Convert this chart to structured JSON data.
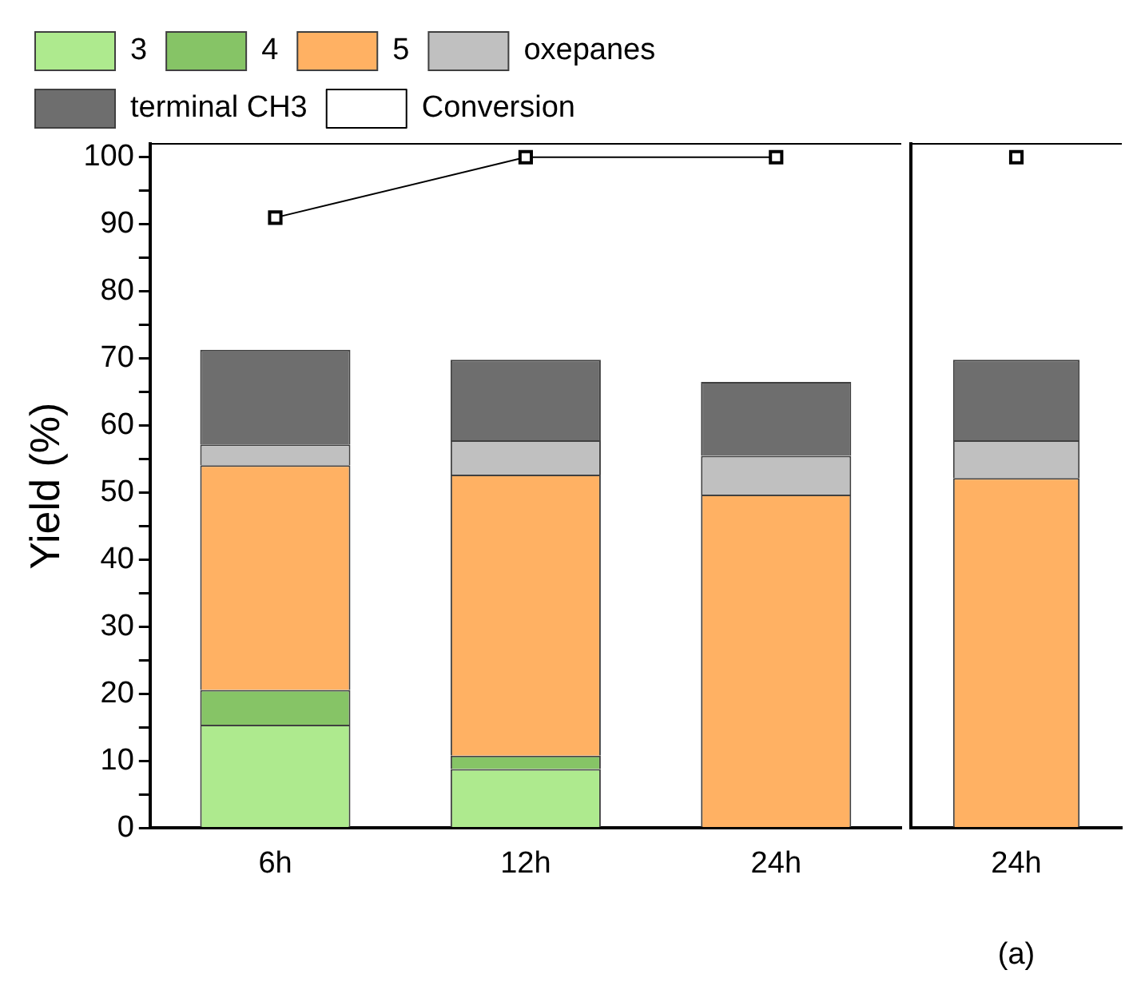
{
  "chart_data": [
    {
      "type": "bar",
      "stacked": true,
      "ylabel": "Yield (%)",
      "categories": [
        "6h",
        "12h",
        "24h"
      ],
      "series": [
        {
          "name": "3",
          "color": "#aeea8e",
          "values": [
            15.4,
            8.8,
            0
          ]
        },
        {
          "name": "4",
          "color": "#86c466",
          "values": [
            5.2,
            2.0,
            0
          ]
        },
        {
          "name": "5",
          "color": "#ffb163",
          "values": [
            33.5,
            41.9,
            49.7
          ]
        },
        {
          "name": "oxepanes",
          "color": "#c0c0c0",
          "values": [
            3.1,
            5.1,
            5.8
          ]
        },
        {
          "name": "terminal CH3",
          "color": "#6e6e6e",
          "values": [
            14.1,
            12.0,
            11.0
          ]
        },
        {
          "name": "Conversion",
          "type": "line",
          "color": "#000000",
          "marker": "square",
          "values": [
            91,
            100,
            100
          ]
        }
      ],
      "ylim": [
        0,
        102
      ],
      "yticks": [
        0,
        {
          "value": 5,
          "label": null
        },
        10,
        {
          "value": 15,
          "label": null
        },
        20,
        {
          "value": 25,
          "label": null
        },
        30,
        {
          "value": 35,
          "label": null
        },
        40,
        {
          "value": 45,
          "label": null
        },
        50,
        {
          "value": 55,
          "label": null
        },
        60,
        {
          "value": 65,
          "label": null
        },
        70,
        {
          "value": 75,
          "label": null
        },
        80,
        {
          "value": 85,
          "label": null
        },
        90,
        {
          "value": 95,
          "label": null
        },
        100
      ],
      "grid": false,
      "legend": "top"
    },
    {
      "type": "bar",
      "stacked": true,
      "categories": [
        "24h"
      ],
      "series": [
        {
          "color": "#aeea8e",
          "values": [
            0
          ]
        },
        {
          "color": "#86c466",
          "values": [
            0
          ]
        },
        {
          "color": "#ffb163",
          "values": [
            52.2
          ]
        },
        {
          "color": "#c0c0c0",
          "values": [
            5.6
          ]
        },
        {
          "color": "#6e6e6e",
          "values": [
            12.0
          ]
        },
        {
          "type": "line",
          "color": "#000000",
          "marker": "square",
          "values": [
            100
          ]
        }
      ],
      "ylim": [
        0,
        102
      ],
      "tick_labels": "x",
      "grid": false,
      "annotations": [
        "(a)"
      ]
    }
  ]
}
